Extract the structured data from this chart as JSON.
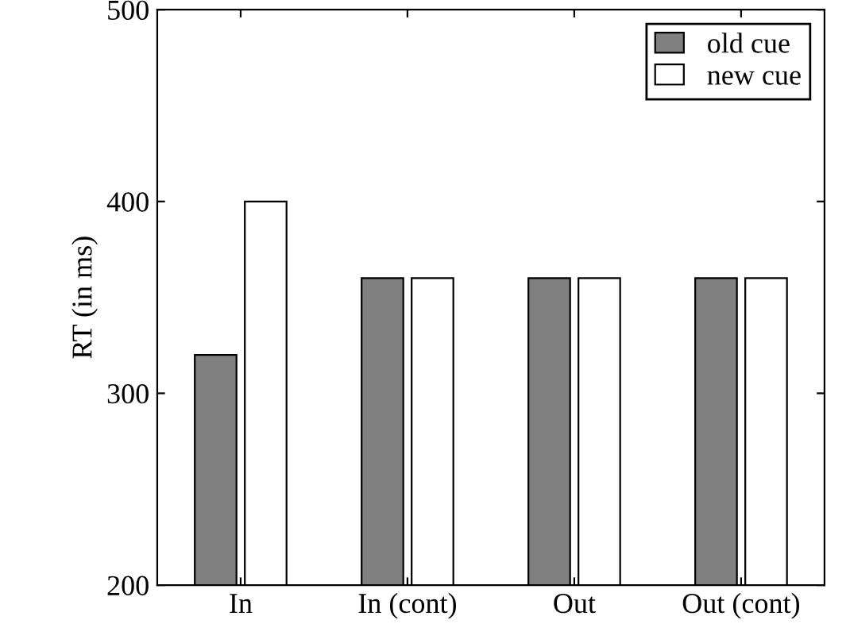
{
  "chart_data": {
    "type": "bar",
    "ylabel": "RT (in ms)",
    "categories": [
      "In",
      "In (cont)",
      "Out",
      "Out (cont)"
    ],
    "series": [
      {
        "name": "old cue",
        "color": "#808080",
        "values": [
          320,
          360,
          360,
          360
        ]
      },
      {
        "name": "new cue",
        "color": "#ffffff",
        "values": [
          400,
          360,
          360,
          360
        ]
      }
    ],
    "ylim": [
      200,
      500
    ],
    "yticks": [
      200,
      300,
      400,
      500
    ],
    "grid": false,
    "legend": "top right"
  }
}
